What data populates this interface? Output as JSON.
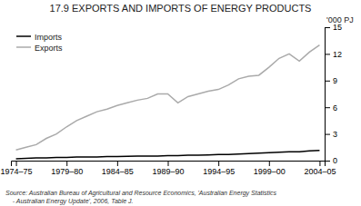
{
  "chart_data": {
    "type": "line",
    "title": "17.9   EXPORTS AND IMPORTS OF ENERGY PRODUCTS",
    "y_label": "'000 PJ",
    "source": "Source: Australian Bureau of Agricultural and Resource Economics, 'Australian Energy Statistics\n    - Australian Energy Update', 2006, Table J.",
    "categories": [
      "1974–75",
      null,
      null,
      null,
      null,
      "1979–80",
      null,
      null,
      null,
      null,
      "1984–85",
      null,
      null,
      null,
      null,
      "1989–90",
      null,
      null,
      null,
      null,
      "1994–95",
      null,
      null,
      null,
      null,
      "1999–00",
      null,
      null,
      null,
      null,
      "2004–05"
    ],
    "series": [
      {
        "name": "Imports",
        "color": "#000000",
        "values": [
          0.2,
          0.25,
          0.3,
          0.3,
          0.35,
          0.35,
          0.4,
          0.4,
          0.42,
          0.45,
          0.45,
          0.48,
          0.5,
          0.5,
          0.52,
          0.55,
          0.55,
          0.6,
          0.6,
          0.65,
          0.68,
          0.7,
          0.75,
          0.8,
          0.85,
          0.9,
          0.95,
          1.0,
          1.0,
          1.1,
          1.15
        ]
      },
      {
        "name": "Exports",
        "color": "#aaaaaa",
        "values": [
          1.2,
          1.5,
          1.8,
          2.5,
          3.0,
          3.8,
          4.5,
          5.0,
          5.5,
          5.8,
          6.2,
          6.5,
          6.8,
          7.0,
          7.5,
          7.5,
          6.5,
          7.2,
          7.5,
          7.8,
          8.0,
          8.5,
          9.2,
          9.5,
          9.6,
          10.5,
          11.5,
          12.0,
          11.2,
          12.2,
          13.0
        ]
      }
    ],
    "ylim": [
      0,
      15
    ],
    "yticks": [
      0,
      3,
      6,
      9,
      12,
      15
    ],
    "grid": false,
    "legend": "upper left"
  }
}
